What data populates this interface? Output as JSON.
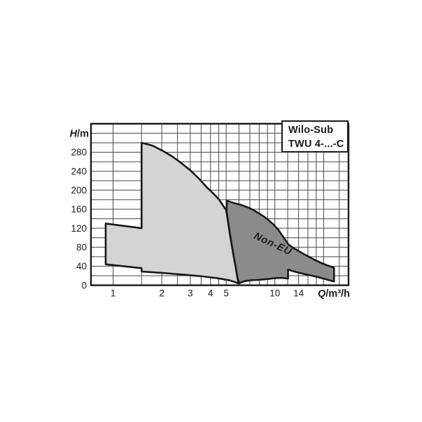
{
  "page": {
    "background": "#ffffff"
  },
  "legend": {
    "line1": "Wilo-Sub",
    "line2": "TWU 4-...-C"
  },
  "chart_data": {
    "type": "area",
    "title": "",
    "grid": true,
    "grid_color": "#474747",
    "outline_color": "#181818",
    "x_axis": {
      "label": "Q/m³/h",
      "scale": "log",
      "min": 0.73,
      "max": 28.5,
      "ticks": [
        1,
        2,
        3,
        4,
        5,
        10,
        14
      ],
      "gridlines": [
        1,
        1.5,
        2,
        2.5,
        3,
        3.5,
        4,
        4.5,
        5,
        6,
        7,
        8,
        9,
        10,
        12,
        14,
        16,
        18,
        20,
        25
      ]
    },
    "y_axis": {
      "label": "H/m",
      "scale": "linear",
      "min": 0,
      "max": 340,
      "grid_step": 20,
      "ticks": [
        0,
        40,
        80,
        120,
        160,
        200,
        240,
        280
      ]
    },
    "regions": [
      {
        "name": "EU",
        "label": "",
        "fill": "#d4d4d4",
        "points": [
          [
            0.9,
            130
          ],
          [
            1.5,
            120
          ],
          [
            1.5,
            300
          ],
          [
            1.75,
            294
          ],
          [
            2.0,
            284
          ],
          [
            2.3,
            272
          ],
          [
            2.6,
            259
          ],
          [
            3.0,
            242
          ],
          [
            3.4,
            224
          ],
          [
            3.8,
            206
          ],
          [
            4.2,
            192
          ],
          [
            4.5,
            181
          ],
          [
            4.75,
            169
          ],
          [
            5.0,
            158
          ],
          [
            5.12,
            136
          ],
          [
            5.25,
            111
          ],
          [
            5.4,
            86
          ],
          [
            5.55,
            62
          ],
          [
            5.72,
            38
          ],
          [
            5.88,
            14
          ],
          [
            5.97,
            4
          ],
          [
            5.3,
            10
          ],
          [
            4.5,
            14.5
          ],
          [
            3.6,
            18.5
          ],
          [
            2.8,
            22
          ],
          [
            2.1,
            25.5
          ],
          [
            1.5,
            29
          ],
          [
            1.5,
            36
          ],
          [
            0.9,
            44
          ]
        ]
      },
      {
        "name": "Non-EU",
        "label": "Non-EU",
        "label_color": "#ffffff",
        "label_pos": [
          9.55,
          81
        ],
        "label_angle": 25,
        "fill": "#8b8b8b",
        "points": [
          [
            5.05,
            178
          ],
          [
            5.6,
            173
          ],
          [
            6.2,
            169
          ],
          [
            6.8,
            164
          ],
          [
            7.4,
            158
          ],
          [
            8.0,
            151
          ],
          [
            8.6,
            144
          ],
          [
            9.2,
            136
          ],
          [
            9.8,
            128
          ],
          [
            10.5,
            117
          ],
          [
            11.2,
            103
          ],
          [
            12.1,
            86
          ],
          [
            13.2,
            77
          ],
          [
            14.5,
            69
          ],
          [
            16,
            61
          ],
          [
            17.5,
            54
          ],
          [
            19,
            48
          ],
          [
            21,
            42
          ],
          [
            23.2,
            37
          ],
          [
            23.2,
            8
          ],
          [
            21,
            12
          ],
          [
            19,
            16
          ],
          [
            17,
            20
          ],
          [
            15,
            24
          ],
          [
            13.5,
            28
          ],
          [
            12.6,
            31
          ],
          [
            12.05,
            33
          ],
          [
            12.05,
            14
          ],
          [
            11,
            15.5
          ],
          [
            10,
            15
          ],
          [
            9,
            13
          ],
          [
            8,
            11.5
          ],
          [
            7,
            10.5
          ],
          [
            6.4,
            8
          ],
          [
            6.05,
            4.5
          ],
          [
            5.9,
            12
          ],
          [
            5.74,
            36
          ],
          [
            5.57,
            60
          ],
          [
            5.42,
            84
          ],
          [
            5.27,
            109
          ],
          [
            5.14,
            134
          ],
          [
            5.02,
            156
          ]
        ]
      }
    ]
  }
}
